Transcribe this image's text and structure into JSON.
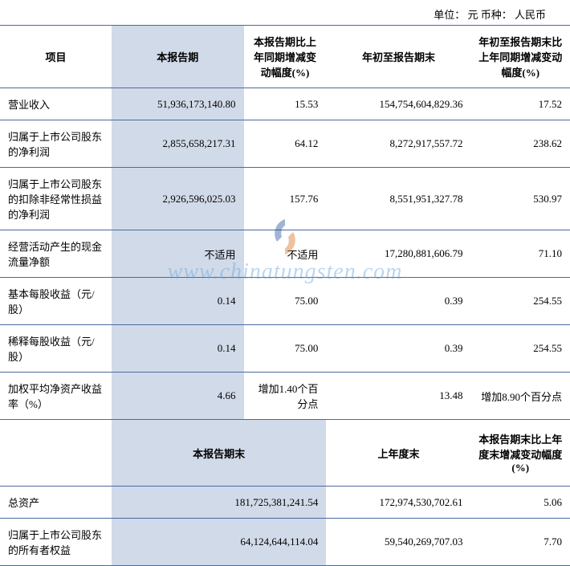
{
  "unit_line": "单位： 元   币种： 人民币",
  "headers1": {
    "c1": "项目",
    "c2": "本报告期",
    "c3": "本报告期比上年同期增减变动幅度(%)",
    "c4": "年初至报告期末",
    "c5": "年初至报告期末比上年同期增减变动幅度(%)"
  },
  "rows": [
    {
      "label": "营业收入",
      "v2": "51,936,173,140.80",
      "v3": "15.53",
      "v4": "154,754,604,829.36",
      "v5": "17.52"
    },
    {
      "label": "归属于上市公司股东的净利润",
      "v2": "2,855,658,217.31",
      "v3": "64.12",
      "v4": "8,272,917,557.72",
      "v5": "238.62"
    },
    {
      "label": "归属于上市公司股东的扣除非经常性损益的净利润",
      "v2": "2,926,596,025.03",
      "v3": "157.76",
      "v4": "8,551,951,327.78",
      "v5": "530.97"
    },
    {
      "label": "经营活动产生的现金流量净额",
      "v2": "不适用",
      "v3": "不适用",
      "v4": "17,280,881,606.79",
      "v5": "71.10"
    },
    {
      "label": "基本每股收益（元/股）",
      "v2": "0.14",
      "v3": "75.00",
      "v4": "0.39",
      "v5": "254.55"
    },
    {
      "label": "稀释每股收益（元/股）",
      "v2": "0.14",
      "v3": "75.00",
      "v4": "0.39",
      "v5": "254.55"
    },
    {
      "label": "加权平均净资产收益率（%）",
      "v2": "4.66",
      "v3": "增加1.40个百分点",
      "v4": "13.48",
      "v5": "增加8.90个百分点"
    }
  ],
  "headers2": {
    "c2": "本报告期末",
    "c4": "上年度末",
    "c5": "本报告期末比上年度末增减变动幅度(%)"
  },
  "rows2": [
    {
      "label": "总资产",
      "v2": "181,725,381,241.54",
      "v4": "172,974,530,702.61",
      "v5": "5.06"
    },
    {
      "label": "归属于上市公司股东的所有者权益",
      "v2": "64,124,644,114.04",
      "v4": "59,540,269,707.03",
      "v5": "7.70"
    }
  ],
  "watermark": {
    "text": "www.chinatungsten.com",
    "logo_colors": {
      "top": "#2e5a9e",
      "bottom": "#d97a2e"
    }
  },
  "colors": {
    "highlight_bg": "#d1dae8",
    "border": "#4a6a9e"
  }
}
